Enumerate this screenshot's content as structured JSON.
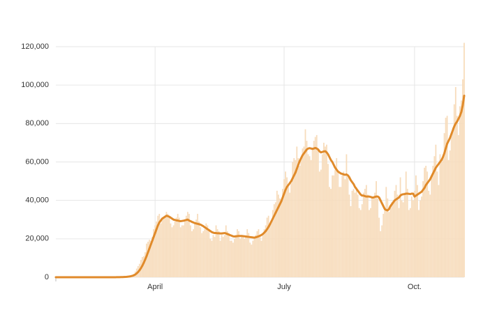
{
  "chart_data": {
    "type": "bar",
    "categories": [
      null,
      null,
      null,
      null,
      null,
      null,
      null,
      null,
      null,
      null,
      null,
      null,
      null,
      null,
      null,
      null,
      null,
      null,
      null,
      null,
      null,
      null,
      null,
      null,
      null,
      null,
      null,
      null,
      null,
      null,
      null,
      null,
      null,
      null,
      null,
      null,
      null,
      null,
      null,
      null,
      null,
      null,
      null,
      null,
      null,
      null,
      null,
      null,
      null,
      null,
      null,
      null,
      null,
      null,
      null,
      null,
      null,
      null,
      null,
      null,
      null,
      null,
      null,
      null,
      null,
      null,
      null,
      null,
      null,
      null,
      "April",
      null,
      null,
      null,
      null,
      null,
      null,
      null,
      null,
      null,
      null,
      null,
      null,
      null,
      null,
      null,
      null,
      null,
      null,
      null,
      null,
      null,
      null,
      null,
      null,
      null,
      null,
      null,
      null,
      null,
      null,
      null,
      null,
      null,
      null,
      null,
      null,
      null,
      null,
      null,
      null,
      null,
      null,
      null,
      null,
      null,
      null,
      null,
      null,
      null,
      null,
      null,
      null,
      null,
      null,
      null,
      null,
      null,
      null,
      null,
      null,
      null,
      null,
      null,
      null,
      null,
      null,
      null,
      null,
      null,
      null,
      null,
      null,
      null,
      null,
      null,
      null,
      null,
      null,
      null,
      null,
      null,
      null,
      null,
      null,
      null,
      null,
      null,
      null,
      null,
      null,
      "July",
      null,
      null,
      null,
      null,
      null,
      null,
      null,
      null,
      null,
      null,
      null,
      null,
      null,
      null,
      null,
      null,
      null,
      null,
      null,
      null,
      null,
      null,
      null,
      null,
      null,
      null,
      null,
      null,
      null,
      null,
      null,
      null,
      null,
      null,
      null,
      null,
      null,
      null,
      null,
      null,
      null,
      null,
      null,
      null,
      null,
      null,
      null,
      null,
      null,
      null,
      null,
      null,
      null,
      null,
      null,
      null,
      null,
      null,
      null,
      null,
      null,
      null,
      null,
      null,
      null,
      null,
      null,
      null,
      null,
      null,
      null,
      null,
      null,
      null,
      null,
      null,
      null,
      null,
      null,
      null,
      null,
      null,
      null,
      null,
      null,
      null,
      null,
      null,
      null,
      null,
      null,
      "Oct.",
      null,
      null,
      null,
      null,
      null,
      null,
      null,
      null,
      null,
      null,
      null,
      null,
      null,
      null,
      null,
      null,
      null,
      null,
      null,
      null,
      null,
      null,
      null,
      null,
      null,
      null,
      null,
      null,
      null,
      null,
      null,
      null,
      null,
      null,
      null
    ],
    "series": [
      {
        "type": "bar",
        "color": "#f7dcbc",
        "values": [
          0,
          0,
          0,
          0,
          0,
          0,
          0,
          0,
          0,
          0,
          0,
          0,
          0,
          0,
          0,
          0,
          0,
          0,
          0,
          0,
          0,
          0,
          0,
          0,
          0,
          0,
          0,
          0,
          0,
          0,
          0,
          0,
          0,
          0,
          0,
          0,
          0,
          0,
          0,
          20,
          20,
          30,
          40,
          70,
          90,
          120,
          150,
          200,
          300,
          400,
          500,
          600,
          700,
          900,
          1300,
          1800,
          3000,
          4500,
          5800,
          7000,
          9000,
          10500,
          11000,
          13000,
          17500,
          18500,
          19500,
          19000,
          21000,
          25000,
          27000,
          29000,
          32000,
          33000,
          28000,
          30000,
          31000,
          32000,
          34000,
          33000,
          31000,
          28000,
          26000,
          27000,
          29000,
          31000,
          33000,
          31000,
          26000,
          27000,
          27000,
          29000,
          32000,
          34000,
          33000,
          27000,
          24000,
          25000,
          28000,
          30000,
          33000,
          29000,
          26000,
          23000,
          24000,
          25000,
          28000,
          27000,
          25000,
          20000,
          19000,
          22000,
          21000,
          27000,
          25000,
          24000,
          19000,
          22000,
          21000,
          22000,
          27000,
          24000,
          23000,
          19000,
          19000,
          18000,
          20000,
          22000,
          25000,
          24000,
          20000,
          21000,
          21000,
          20000,
          21000,
          25000,
          23000,
          18000,
          17000,
          19000,
          21000,
          22000,
          24000,
          25000,
          21000,
          19000,
          23000,
          25000,
          27000,
          31000,
          32000,
          27000,
          29000,
          35000,
          38000,
          39000,
          45000,
          43000,
          41000,
          40000,
          46000,
          51000,
          55000,
          52000,
          47000,
          44000,
          49000,
          60000,
          62000,
          61000,
          68000,
          62000,
          58000,
          62000,
          67000,
          68000,
          77000,
          71000,
          64000,
          63000,
          61000,
          67000,
          71000,
          73000,
          74000,
          67000,
          55000,
          56000,
          64000,
          70000,
          68000,
          69000,
          59000,
          47000,
          46000,
          53000,
          53000,
          56000,
          62000,
          55000,
          47000,
          47000,
          53000,
          55000,
          51000,
          64000,
          52000,
          43000,
          37000,
          45000,
          46000,
          44000,
          47000,
          43000,
          36000,
          35000,
          38000,
          44000,
          46000,
          48000,
          43000,
          35000,
          36000,
          42000,
          41000,
          44000,
          50000,
          41000,
          31000,
          24000,
          27000,
          33000,
          35000,
          47000,
          41000,
          34000,
          36000,
          39000,
          40000,
          45000,
          48000,
          43000,
          36000,
          52000,
          40000,
          39000,
          44000,
          55000,
          46000,
          35000,
          36000,
          42000,
          40000,
          45000,
          53000,
          48000,
          35000,
          40000,
          42000,
          50000,
          57000,
          58000,
          55000,
          45000,
          43000,
          52000,
          58000,
          63000,
          69000,
          55000,
          48000,
          64000,
          60000,
          62000,
          75000,
          83000,
          84000,
          61000,
          66000,
          74000,
          78000,
          90000,
          99000,
          84000,
          74000,
          89000,
          92000,
          103000,
          122000
        ]
      },
      {
        "type": "line",
        "color": "#e08a2a",
        "values": [
          0,
          0,
          0,
          0,
          0,
          0,
          0,
          0,
          0,
          0,
          0,
          0,
          0,
          0,
          0,
          0,
          0,
          0,
          0,
          0,
          0,
          0,
          0,
          0,
          0,
          0,
          0,
          0,
          0,
          0,
          0,
          0,
          0,
          0,
          0,
          0,
          0,
          0,
          0,
          0,
          0,
          10,
          20,
          30,
          40,
          50,
          70,
          90,
          120,
          160,
          220,
          300,
          400,
          550,
          750,
          1000,
          1400,
          2000,
          2700,
          3600,
          4700,
          6000,
          7500,
          9200,
          11000,
          13000,
          15000,
          17000,
          19000,
          21000,
          23000,
          25000,
          27000,
          28500,
          29500,
          30500,
          31000,
          31500,
          32000,
          31800,
          31500,
          31000,
          30500,
          30000,
          29800,
          29600,
          29500,
          29300,
          29200,
          29300,
          29400,
          29600,
          29800,
          30000,
          29500,
          29200,
          28800,
          28500,
          28200,
          28000,
          27800,
          27600,
          27400,
          27000,
          26600,
          26000,
          25500,
          25000,
          24500,
          24000,
          23500,
          23200,
          23000,
          23000,
          22900,
          22900,
          22800,
          22800,
          22900,
          23000,
          22800,
          22500,
          22200,
          21900,
          21600,
          21300,
          21200,
          21300,
          21400,
          21500,
          21500,
          21500,
          21400,
          21300,
          21200,
          21100,
          21000,
          20900,
          20800,
          20700,
          20600,
          20800,
          21000,
          21300,
          21600,
          22000,
          22500,
          23200,
          24000,
          25000,
          26200,
          27500,
          29000,
          30500,
          32000,
          33500,
          35000,
          36500,
          38000,
          39500,
          41500,
          43500,
          45500,
          47000,
          48000,
          49000,
          50000,
          51500,
          53000,
          54500,
          56500,
          58500,
          60500,
          62000,
          63500,
          64500,
          65500,
          66500,
          67000,
          67200,
          67000,
          66800,
          67000,
          67300,
          67000,
          66500,
          65500,
          65000,
          65200,
          65500,
          65600,
          65000,
          64000,
          62500,
          61000,
          60000,
          58500,
          57000,
          56000,
          55000,
          54500,
          54000,
          53800,
          53500,
          53300,
          53500,
          53000,
          52000,
          50500,
          49500,
          48500,
          47000,
          46000,
          45000,
          44000,
          43000,
          42500,
          42500,
          42200,
          42000,
          42000,
          42000,
          41800,
          41500,
          41500,
          41800,
          42000,
          42000,
          41500,
          40000,
          38500,
          37000,
          35500,
          35000,
          34800,
          35500,
          37000,
          38000,
          39000,
          40000,
          40500,
          41000,
          41500,
          42500,
          43000,
          43200,
          43300,
          43500,
          43500,
          43400,
          43300,
          43500,
          43500,
          42000,
          42500,
          43000,
          43500,
          44000,
          44500,
          45500,
          46500,
          48000,
          49000,
          50000,
          51000,
          52500,
          54000,
          55500,
          57000,
          58000,
          59000,
          60000,
          61000,
          62500,
          64500,
          67000,
          69500,
          71000,
          72500,
          74500,
          76500,
          78500,
          80000,
          81000,
          82500,
          84000,
          86000,
          89500,
          94500
        ]
      }
    ],
    "ylim": [
      0,
      120000
    ],
    "yticks": [
      0,
      {
        "value": 20000,
        "label": "20,000"
      },
      {
        "value": 40000,
        "label": "40,000"
      },
      {
        "value": 60000,
        "label": "60,000"
      },
      {
        "value": 80000,
        "label": "80,000"
      },
      {
        "value": 100000,
        "label": "100,000"
      },
      {
        "value": 120000,
        "label": "120,000"
      }
    ],
    "grid": true
  }
}
